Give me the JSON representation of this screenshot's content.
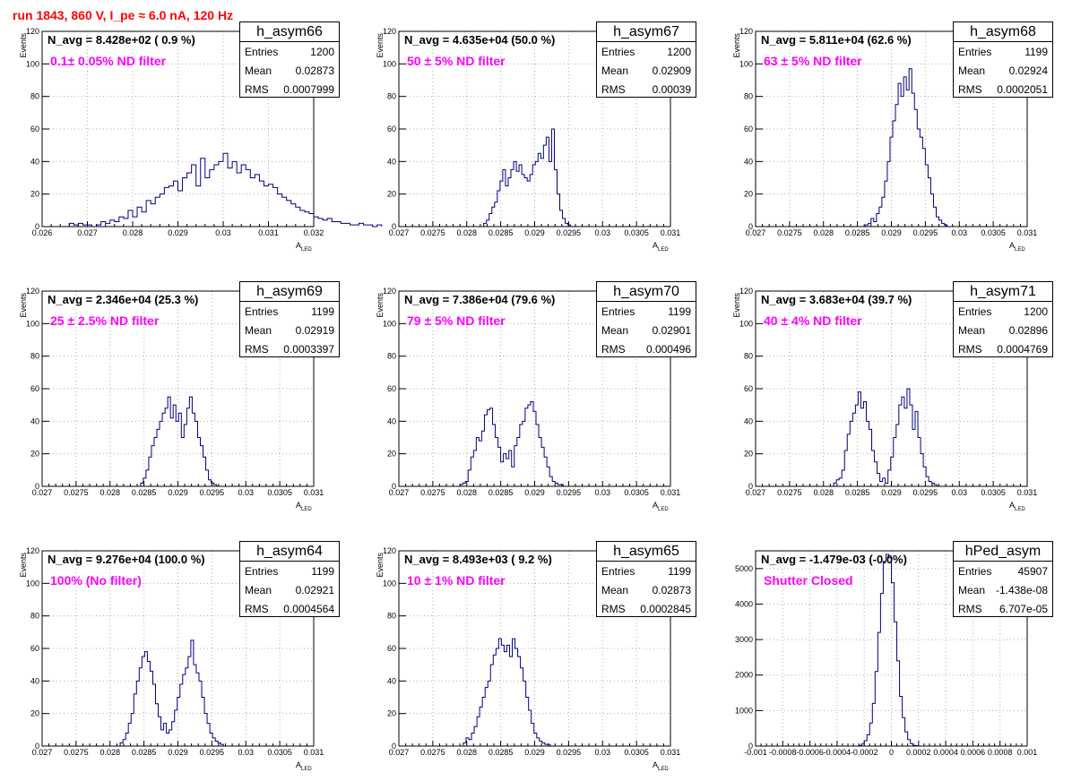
{
  "canvas_title": "run 1843,   860 V, I_pe ≈ 6.0 nA, 120 Hz",
  "colors": {
    "histogram_line": "#000080",
    "title_red": "#ff0000",
    "filter_magenta": "#ff00ff",
    "grid": "#b0b0b0"
  },
  "panels": [
    {
      "hist_name": "h_asym66",
      "n_avg": "N_avg = 8.428e+02 ( 0.9 %)",
      "filter_label": "0.1± 0.05% ND filter",
      "stats": [
        {
          "key": "Entries",
          "value": "1200"
        },
        {
          "key": "Mean",
          "value": "0.02873"
        },
        {
          "key": "RMS",
          "value": "0.0007999"
        }
      ],
      "xlabel": "A_LED",
      "ylabel": "Events",
      "x_ticks": [
        "0.026",
        "0.027",
        "0.028",
        "0.029",
        "0.03",
        "0.031",
        "0.032"
      ],
      "y_ticks": [
        "0",
        "20",
        "40",
        "60",
        "80",
        "100",
        "120"
      ]
    },
    {
      "hist_name": "h_asym67",
      "n_avg": "N_avg = 4.635e+04 (50.0 %)",
      "filter_label": "50 ± 5% ND filter",
      "stats": [
        {
          "key": "Entries",
          "value": "1200"
        },
        {
          "key": "Mean",
          "value": "0.02909"
        },
        {
          "key": "RMS",
          "value": "0.00039"
        }
      ],
      "xlabel": "A_LED",
      "ylabel": "Events",
      "x_ticks": [
        "0.027",
        "0.0275",
        "0.028",
        "0.0285",
        "0.029",
        "0.0295",
        "0.03",
        "0.0305",
        "0.031"
      ],
      "y_ticks": [
        "0",
        "20",
        "40",
        "60",
        "80",
        "100",
        "120"
      ]
    },
    {
      "hist_name": "h_asym68",
      "n_avg": "N_avg = 5.811e+04 (62.6 %)",
      "filter_label": "63 ± 5% ND filter",
      "stats": [
        {
          "key": "Entries",
          "value": "1199"
        },
        {
          "key": "Mean",
          "value": "0.02924"
        },
        {
          "key": "RMS",
          "value": "0.0002051"
        }
      ],
      "xlabel": "A_LED",
      "ylabel": "Events",
      "x_ticks": [
        "0.027",
        "0.0275",
        "0.028",
        "0.0285",
        "0.029",
        "0.0295",
        "0.03",
        "0.0305",
        "0.031"
      ],
      "y_ticks": [
        "0",
        "20",
        "40",
        "60",
        "80",
        "100",
        "120"
      ]
    },
    {
      "hist_name": "h_asym69",
      "n_avg": "N_avg = 2.346e+04 (25.3 %)",
      "filter_label": "25 ± 2.5% ND filter",
      "stats": [
        {
          "key": "Entries",
          "value": "1199"
        },
        {
          "key": "Mean",
          "value": "0.02919"
        },
        {
          "key": "RMS",
          "value": "0.0003397"
        }
      ],
      "xlabel": "A_LED",
      "ylabel": "Events",
      "x_ticks": [
        "0.027",
        "0.0275",
        "0.028",
        "0.0285",
        "0.029",
        "0.0295",
        "0.03",
        "0.0305",
        "0.031"
      ],
      "y_ticks": [
        "0",
        "20",
        "40",
        "60",
        "80",
        "100",
        "120"
      ]
    },
    {
      "hist_name": "h_asym70",
      "n_avg": "N_avg = 7.386e+04 (79.6 %)",
      "filter_label": "79 ± 5% ND filter",
      "stats": [
        {
          "key": "Entries",
          "value": "1199"
        },
        {
          "key": "Mean",
          "value": "0.02901"
        },
        {
          "key": "RMS",
          "value": "0.000496"
        }
      ],
      "xlabel": "A_LED",
      "ylabel": "Events",
      "x_ticks": [
        "0.027",
        "0.0275",
        "0.028",
        "0.0285",
        "0.029",
        "0.0295",
        "0.03",
        "0.0305",
        "0.031"
      ],
      "y_ticks": [
        "0",
        "20",
        "40",
        "60",
        "80",
        "100",
        "120"
      ]
    },
    {
      "hist_name": "h_asym71",
      "n_avg": "N_avg = 3.683e+04 (39.7 %)",
      "filter_label": "40 ± 4% ND filter",
      "stats": [
        {
          "key": "Entries",
          "value": "1200"
        },
        {
          "key": "Mean",
          "value": "0.02896"
        },
        {
          "key": "RMS",
          "value": "0.0004769"
        }
      ],
      "xlabel": "A_LED",
      "ylabel": "Events",
      "x_ticks": [
        "0.027",
        "0.0275",
        "0.028",
        "0.0285",
        "0.029",
        "0.0295",
        "0.03",
        "0.0305",
        "0.031"
      ],
      "y_ticks": [
        "0",
        "20",
        "40",
        "60",
        "80",
        "100",
        "120"
      ]
    },
    {
      "hist_name": "h_asym64",
      "n_avg": "N_avg = 9.276e+04 (100.0 %)",
      "filter_label": "100% (No filter)",
      "stats": [
        {
          "key": "Entries",
          "value": "1199"
        },
        {
          "key": "Mean",
          "value": "0.02921"
        },
        {
          "key": "RMS",
          "value": "0.0004564"
        }
      ],
      "xlabel": "A_LED",
      "ylabel": "Events",
      "x_ticks": [
        "0.027",
        "0.0275",
        "0.028",
        "0.0285",
        "0.029",
        "0.0295",
        "0.03",
        "0.0305",
        "0.031"
      ],
      "y_ticks": [
        "0",
        "20",
        "40",
        "60",
        "80",
        "100",
        "120"
      ]
    },
    {
      "hist_name": "h_asym65",
      "n_avg": "N_avg = 8.493e+03 ( 9.2 %)",
      "filter_label": "10 ± 1% ND filter",
      "stats": [
        {
          "key": "Entries",
          "value": "1199"
        },
        {
          "key": "Mean",
          "value": "0.02873"
        },
        {
          "key": "RMS",
          "value": "0.0002845"
        }
      ],
      "xlabel": "A_LED",
      "ylabel": "Events",
      "x_ticks": [
        "0.027",
        "0.0275",
        "0.028",
        "0.0285",
        "0.029",
        "0.0295",
        "0.03",
        "0.0305",
        "0.031"
      ],
      "y_ticks": [
        "0",
        "20",
        "40",
        "60",
        "80",
        "100",
        "120"
      ]
    },
    {
      "hist_name": "hPed_asym",
      "n_avg": "N_avg = -1.479e-03 (-0.0%)",
      "filter_label": "Shutter Closed",
      "stats": [
        {
          "key": "Entries",
          "value": "45907"
        },
        {
          "key": "Mean",
          "value": "-1.438e-08"
        },
        {
          "key": "RMS",
          "value": "6.707e-05"
        }
      ],
      "xlabel": "",
      "ylabel": "",
      "x_ticks": [
        "-0.001",
        "-0.0008",
        "-0.0006",
        "-0.0004",
        "-0.0002",
        "0",
        "0.0002",
        "0.0004",
        "0.0006",
        "0.0008",
        "0.001"
      ],
      "y_ticks": [
        "0",
        "1000",
        "2000",
        "3000",
        "4000",
        "5000"
      ]
    }
  ],
  "chart_data": [
    {
      "type": "histogram",
      "title": "h_asym66",
      "xlabel": "A_LED",
      "ylabel": "Events",
      "xlim": [
        0.026,
        0.032
      ],
      "ylim": [
        0,
        120
      ],
      "grid": true,
      "legend": "top-right stats box",
      "bins": {
        "start": 0.0266,
        "width": 0.0001
      },
      "values": [
        2,
        1,
        2,
        1,
        1,
        0,
        1,
        3,
        2,
        4,
        3,
        6,
        5,
        10,
        6,
        12,
        9,
        16,
        14,
        18,
        20,
        24,
        25,
        28,
        22,
        30,
        33,
        38,
        25,
        42,
        30,
        35,
        38,
        40,
        45,
        36,
        40,
        33,
        38,
        35,
        30,
        32,
        28,
        25,
        26,
        24,
        20,
        18,
        16,
        14,
        12,
        10,
        9,
        8,
        6,
        5,
        4,
        5,
        3,
        3,
        2,
        2,
        1,
        1,
        2,
        1,
        1,
        0,
        1
      ]
    },
    {
      "type": "histogram",
      "title": "h_asym67",
      "xlabel": "A_LED",
      "ylabel": "Events",
      "xlim": [
        0.027,
        0.031
      ],
      "ylim": [
        0,
        120
      ],
      "grid": true,
      "legend": "top-right stats box",
      "bins": {
        "start": 0.02825,
        "width": 4e-05
      },
      "values": [
        2,
        4,
        8,
        12,
        15,
        22,
        28,
        35,
        25,
        30,
        35,
        40,
        34,
        38,
        32,
        30,
        28,
        32,
        38,
        40,
        45,
        42,
        50,
        55,
        40,
        60,
        35,
        20,
        10,
        5,
        2,
        1
      ]
    },
    {
      "type": "histogram",
      "title": "h_asym68",
      "xlabel": "A_LED",
      "ylabel": "Events",
      "xlim": [
        0.027,
        0.031
      ],
      "ylim": [
        0,
        120
      ],
      "grid": true,
      "legend": "top-right stats box",
      "bins": {
        "start": 0.02862,
        "width": 4e-05
      },
      "values": [
        1,
        2,
        5,
        3,
        8,
        12,
        18,
        28,
        40,
        55,
        65,
        75,
        88,
        80,
        92,
        84,
        97,
        82,
        72,
        60,
        55,
        48,
        38,
        30,
        20,
        12,
        6,
        4,
        2,
        1
      ]
    },
    {
      "type": "histogram",
      "title": "h_asym69",
      "xlabel": "A_LED",
      "ylabel": "Events",
      "xlim": [
        0.027,
        0.031
      ],
      "ylim": [
        0,
        120
      ],
      "grid": true,
      "legend": "top-right stats box",
      "bins": {
        "start": 0.02845,
        "width": 4e-05
      },
      "values": [
        2,
        5,
        10,
        18,
        25,
        30,
        35,
        40,
        45,
        48,
        55,
        42,
        50,
        40,
        45,
        30,
        38,
        48,
        55,
        45,
        40,
        30,
        25,
        18,
        10,
        4,
        2,
        1
      ]
    },
    {
      "type": "histogram",
      "title": "h_asym70",
      "xlabel": "A_LED",
      "ylabel": "Events",
      "xlim": [
        0.027,
        0.031
      ],
      "ylim": [
        0,
        120
      ],
      "grid": true,
      "legend": "top-right stats box",
      "bins": {
        "start": 0.0279,
        "width": 4e-05
      },
      "values": [
        1,
        2,
        3,
        10,
        18,
        22,
        30,
        28,
        34,
        44,
        47,
        48,
        38,
        30,
        24,
        15,
        20,
        17,
        22,
        12,
        25,
        30,
        38,
        40,
        48,
        50,
        52,
        46,
        38,
        30,
        24,
        18,
        12,
        6,
        3,
        2,
        1,
        1
      ]
    },
    {
      "type": "histogram",
      "title": "h_asym71",
      "xlabel": "A_LED",
      "ylabel": "Events",
      "xlim": [
        0.027,
        0.031
      ],
      "ylim": [
        0,
        120
      ],
      "grid": true,
      "legend": "top-right stats box",
      "bins": {
        "start": 0.02815,
        "width": 4e-05
      },
      "values": [
        2,
        4,
        5,
        10,
        22,
        32,
        40,
        45,
        50,
        58,
        48,
        52,
        40,
        35,
        22,
        15,
        8,
        3,
        5,
        2,
        10,
        18,
        30,
        38,
        50,
        55,
        48,
        60,
        50,
        35,
        46,
        30,
        20,
        12,
        6,
        3,
        2,
        1
      ]
    },
    {
      "type": "histogram",
      "title": "h_asym64",
      "xlabel": "A_LED",
      "ylabel": "Events",
      "xlim": [
        0.027,
        0.031
      ],
      "ylim": [
        0,
        120
      ],
      "grid": true,
      "legend": "top-right stats box",
      "bins": {
        "start": 0.02815,
        "width": 4e-05
      },
      "values": [
        2,
        4,
        8,
        14,
        20,
        32,
        40,
        48,
        55,
        58,
        52,
        46,
        38,
        26,
        18,
        10,
        14,
        8,
        10,
        15,
        22,
        30,
        38,
        44,
        48,
        55,
        65,
        50,
        45,
        40,
        30,
        20,
        14,
        8,
        5,
        3,
        2,
        1
      ]
    },
    {
      "type": "histogram",
      "title": "h_asym65",
      "xlabel": "A_LED",
      "ylabel": "Events",
      "xlim": [
        0.027,
        0.031
      ],
      "ylim": [
        0,
        120
      ],
      "grid": true,
      "legend": "top-right stats box",
      "bins": {
        "start": 0.02795,
        "width": 4e-05
      },
      "values": [
        2,
        5,
        4,
        8,
        12,
        18,
        24,
        30,
        36,
        40,
        50,
        56,
        60,
        66,
        62,
        58,
        62,
        55,
        66,
        60,
        55,
        48,
        40,
        30,
        22,
        14,
        8,
        5,
        3,
        2,
        1,
        1
      ]
    },
    {
      "type": "histogram",
      "title": "hPed_asym",
      "xlabel": "",
      "ylabel": "",
      "xlim": [
        -0.001,
        0.001
      ],
      "ylim": [
        0,
        5500
      ],
      "grid": true,
      "legend": "top-right stats box",
      "bins": {
        "start": -0.00026,
        "width": 2e-05
      },
      "values": [
        0,
        20,
        60,
        150,
        320,
        650,
        1200,
        2100,
        3200,
        4300,
        5200,
        5400,
        5300,
        4600,
        3500,
        2400,
        1400,
        800,
        400,
        180,
        70,
        20,
        5,
        0,
        0,
        0
      ]
    }
  ]
}
